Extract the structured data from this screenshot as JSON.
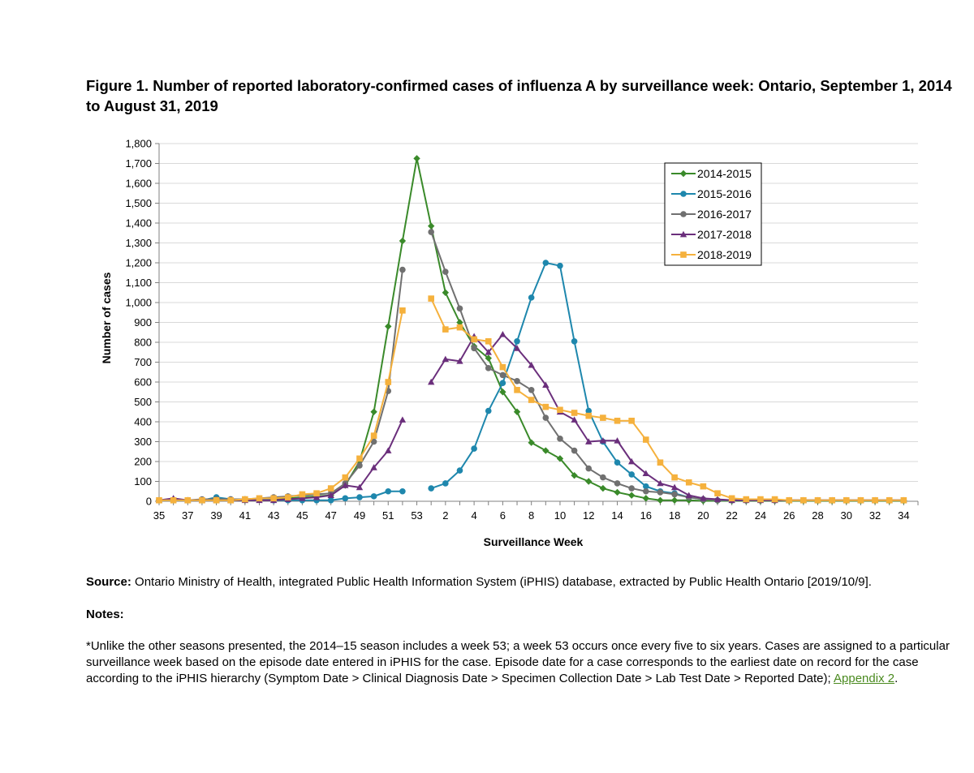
{
  "document": {
    "title": "Figure 1. Number of reported laboratory-confirmed cases of influenza A by surveillance week: Ontario, September 1, 2014 to August 31, 2019",
    "source_label": "Source:",
    "source_text": " Ontario Ministry of Health, integrated Public Health Information System (iPHIS) database, extracted by Public Health Ontario [2019/10/9].",
    "notes_heading": "Notes:",
    "notes_lines": [
      "*Unlike the other seasons presented, the 2014–15 season includes a week 53; a week 53 occurs once every five to six years. Cases are assigned to a particular",
      "surveillance week based on the episode date entered in iPHIS for the case. Episode date for a case corresponds to the earliest date on record for the case",
      "according to the iPHIS hierarchy (Symptom Date > Clinical Diagnosis Date > Specimen Collection Date > Lab Test Date > Reported Date); "
    ],
    "appendix_link": "Appendix 2",
    "notes_end": "."
  },
  "chart_data": {
    "type": "line",
    "xlabel": "Surveillance Week",
    "ylabel": "Number of cases",
    "ylim": [
      0,
      1800
    ],
    "yticks": [
      "0",
      "100",
      "200",
      "300",
      "400",
      "500",
      "600",
      "700",
      "800",
      "900",
      "1,000",
      "1,100",
      "1,200",
      "1,300",
      "1,400",
      "1,500",
      "1,600",
      "1,700",
      "1,800"
    ],
    "grid": true,
    "legend_position": "top-right",
    "x": [
      "35",
      "36",
      "37",
      "38",
      "39",
      "40",
      "41",
      "42",
      "43",
      "44",
      "45",
      "46",
      "47",
      "48",
      "49",
      "50",
      "51",
      "52",
      "53",
      "1",
      "2",
      "3",
      "4",
      "5",
      "6",
      "7",
      "8",
      "9",
      "10",
      "11",
      "12",
      "13",
      "14",
      "15",
      "16",
      "17",
      "18",
      "19",
      "20",
      "21",
      "22",
      "23",
      "24",
      "25",
      "26",
      "27",
      "28",
      "29",
      "30",
      "31",
      "32",
      "33",
      "34",
      "35"
    ],
    "xtick_labels": [
      "35",
      "",
      "37",
      "",
      "39",
      "",
      "41",
      "",
      "43",
      "",
      "45",
      "",
      "47",
      "",
      "49",
      "",
      "51",
      "",
      "53",
      "",
      "2",
      "",
      "4",
      "",
      "6",
      "",
      "8",
      "",
      "10",
      "",
      "12",
      "",
      "14",
      "",
      "16",
      "",
      "18",
      "",
      "20",
      "",
      "22",
      "",
      "24",
      "",
      "26",
      "",
      "28",
      "",
      "30",
      "",
      "32",
      "",
      "34",
      ""
    ],
    "series": [
      {
        "name": "2014-2015",
        "color": "#3a8a2a",
        "marker": "diamond",
        "values": [
          5,
          5,
          5,
          5,
          5,
          5,
          5,
          10,
          10,
          15,
          20,
          25,
          30,
          80,
          200,
          450,
          880,
          1310,
          1725,
          1385,
          1050,
          900,
          780,
          720,
          550,
          450,
          295,
          255,
          215,
          130,
          100,
          65,
          45,
          30,
          15,
          5,
          5,
          5,
          2,
          2,
          2,
          2,
          2,
          2,
          2,
          2,
          2,
          2,
          2,
          2,
          2,
          2,
          2,
          null
        ]
      },
      {
        "name": "2015-2016",
        "color": "#1e87ad",
        "marker": "circle",
        "values": [
          5,
          5,
          5,
          5,
          20,
          10,
          10,
          10,
          5,
          5,
          5,
          5,
          5,
          15,
          20,
          25,
          50,
          50,
          null,
          65,
          90,
          155,
          265,
          455,
          595,
          805,
          1025,
          1200,
          1185,
          805,
          455,
          300,
          195,
          135,
          75,
          50,
          40,
          20,
          10,
          5,
          5,
          5,
          5,
          5,
          5,
          5,
          5,
          5,
          5,
          5,
          5,
          5,
          5,
          null
        ]
      },
      {
        "name": "2016-2017",
        "color": "#707070",
        "marker": "circle",
        "values": [
          5,
          5,
          5,
          10,
          10,
          10,
          10,
          15,
          20,
          25,
          30,
          35,
          40,
          90,
          180,
          300,
          555,
          1165,
          null,
          1355,
          1155,
          970,
          770,
          670,
          635,
          605,
          560,
          420,
          315,
          255,
          165,
          120,
          90,
          65,
          50,
          45,
          35,
          20,
          10,
          5,
          5,
          5,
          5,
          5,
          5,
          5,
          5,
          5,
          5,
          5,
          5,
          5,
          5,
          null
        ]
      },
      {
        "name": "2017-2018",
        "color": "#6b2f7c",
        "marker": "triangle",
        "values": [
          5,
          15,
          5,
          5,
          5,
          5,
          5,
          5,
          5,
          10,
          15,
          20,
          30,
          80,
          70,
          170,
          255,
          410,
          null,
          600,
          715,
          705,
          830,
          750,
          840,
          770,
          685,
          585,
          450,
          410,
          300,
          305,
          305,
          200,
          140,
          90,
          70,
          30,
          15,
          10,
          5,
          5,
          5,
          5,
          5,
          5,
          5,
          5,
          5,
          5,
          5,
          5,
          5,
          null
        ]
      },
      {
        "name": "2018-2019",
        "color": "#f5b13d",
        "marker": "square",
        "values": [
          5,
          5,
          5,
          5,
          5,
          5,
          10,
          15,
          15,
          20,
          35,
          40,
          65,
          120,
          215,
          330,
          600,
          960,
          null,
          1020,
          865,
          875,
          815,
          805,
          675,
          560,
          510,
          475,
          460,
          445,
          430,
          420,
          405,
          405,
          310,
          195,
          120,
          95,
          75,
          40,
          15,
          10,
          10,
          10,
          5,
          5,
          5,
          5,
          5,
          5,
          5,
          5,
          5,
          null
        ]
      }
    ]
  }
}
